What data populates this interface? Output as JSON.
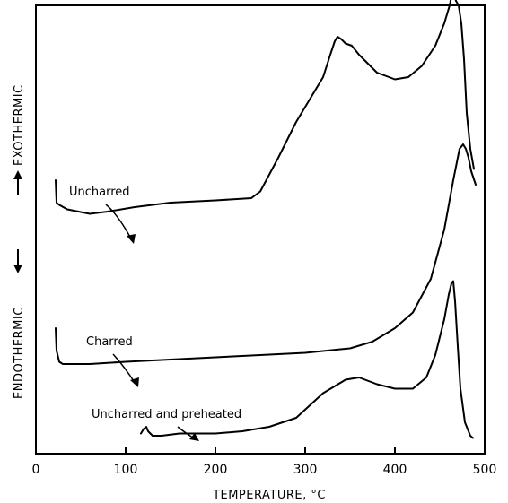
{
  "chart_data": {
    "type": "line",
    "xlabel": "TEMPERATURE, °C",
    "ylabel_upper": "EXOTHERMIC",
    "ylabel_lower": "ENDOTHERMIC",
    "xlim": [
      0,
      500
    ],
    "ylim": [
      0,
      100
    ],
    "x_ticks": [
      0,
      100,
      200,
      300,
      400,
      500
    ],
    "y_axis_values_shown": false,
    "grid": false,
    "legend": "none",
    "annotations": [
      {
        "text": "Uncharred",
        "series": 0,
        "points_to_x": 110
      },
      {
        "text": "Charred",
        "series": 1,
        "points_to_x": 115
      },
      {
        "text": "Uncharred and preheated",
        "series": 2,
        "points_to_x": 180
      }
    ],
    "series": [
      {
        "name": "Uncharred",
        "x": [
          22,
          23,
          26,
          35,
          60,
          80,
          110,
          150,
          200,
          240,
          250,
          270,
          290,
          305,
          320,
          328,
          333,
          336,
          340,
          345,
          352,
          360,
          380,
          400,
          415,
          430,
          445,
          455,
          461,
          464,
          466,
          468,
          471,
          474,
          477,
          480,
          484,
          488
        ],
        "y": [
          61,
          56,
          55.5,
          54.5,
          53.5,
          54,
          55,
          56,
          56.5,
          57,
          58.5,
          66,
          74,
          79,
          84,
          89,
          92,
          93,
          92.5,
          91.5,
          91,
          89,
          85,
          83.5,
          84,
          86.5,
          91,
          96,
          100,
          103,
          102.5,
          101,
          100,
          96,
          88,
          76,
          68,
          63.5
        ]
      },
      {
        "name": "Charred",
        "x": [
          22,
          23,
          26,
          30,
          60,
          100,
          150,
          200,
          250,
          300,
          350,
          375,
          400,
          420,
          440,
          455,
          465,
          472,
          476,
          479,
          482,
          485,
          490
        ],
        "y": [
          28,
          23,
          20.5,
          20,
          20,
          20.5,
          21,
          21.5,
          22,
          22.5,
          23.5,
          25,
          28,
          31.5,
          39,
          50,
          61,
          68,
          69,
          68,
          66,
          63,
          60
        ]
      },
      {
        "name": "Uncharred and preheated",
        "x": [
          117,
          120,
          123,
          125,
          130,
          140,
          160,
          180,
          200,
          230,
          260,
          290,
          320,
          345,
          360,
          380,
          400,
          420,
          435,
          445,
          455,
          460,
          463,
          465,
          467,
          470,
          473,
          478,
          484,
          487
        ],
        "y": [
          4.5,
          5.5,
          6,
          5,
          4,
          4,
          4.5,
          4.5,
          4.5,
          5,
          6,
          8,
          13.5,
          16.5,
          17,
          15.5,
          14.5,
          14.5,
          17,
          22,
          30,
          35.5,
          38,
          38.5,
          34,
          24,
          14.5,
          7,
          4,
          3.5
        ]
      }
    ]
  }
}
